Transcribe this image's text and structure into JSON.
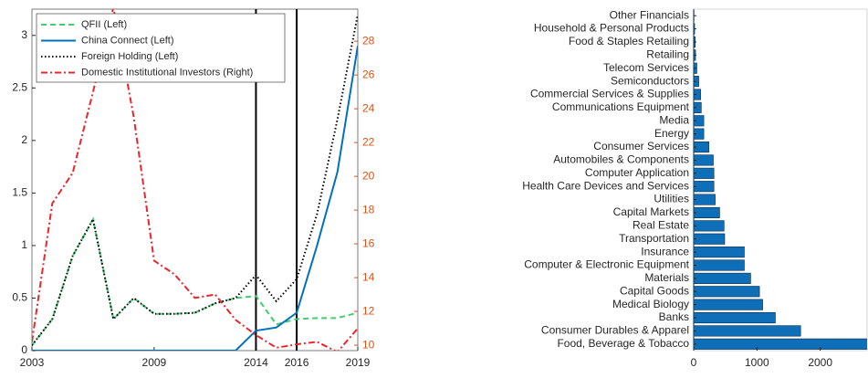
{
  "chart_data": [
    {
      "type": "line",
      "x": [
        2003,
        2004,
        2005,
        2006,
        2007,
        2008,
        2009,
        2010,
        2011,
        2012,
        2013,
        2014,
        2015,
        2016,
        2017,
        2018,
        2019
      ],
      "xlim": [
        2003,
        2019
      ],
      "xticks": [
        2003,
        2009,
        2014,
        2016,
        2019
      ],
      "ylim": [
        0,
        3.25
      ],
      "yticks": [
        0,
        0.5,
        1,
        1.5,
        2,
        2.5,
        3
      ],
      "y2lim": [
        9.68,
        29.9
      ],
      "y2ticks": [
        10,
        12,
        14,
        16,
        18,
        20,
        22,
        24,
        26,
        28
      ],
      "y2color": "#d95319",
      "vlines": [
        2014,
        2016
      ],
      "series": [
        {
          "name": "QFII (Left)",
          "color": "#3ecf6f",
          "dash": "6,4",
          "values": [
            0.05,
            0.3,
            0.9,
            1.25,
            0.3,
            0.5,
            0.35,
            0.35,
            0.36,
            0.45,
            0.5,
            0.52,
            0.25,
            0.3,
            0.31,
            0.31,
            0.36
          ]
        },
        {
          "name": "China Connect (Left)",
          "color": "#0072bd",
          "dash": "none",
          "values": [
            0,
            0,
            0,
            0,
            0,
            0,
            0,
            0,
            0,
            0,
            0,
            0.19,
            0.22,
            0.36,
            1.0,
            1.7,
            2.9
          ]
        },
        {
          "name": "Foreign Holding (Left)",
          "color": "#000000",
          "dash": "1.5,2.5",
          "values": [
            0.05,
            0.3,
            0.9,
            1.25,
            0.3,
            0.5,
            0.35,
            0.35,
            0.36,
            0.45,
            0.5,
            0.72,
            0.47,
            0.68,
            1.3,
            2.2,
            3.2
          ]
        },
        {
          "name": "Domestic Institutional Investors (Right)",
          "color": "#e8262b",
          "dash": "7,3,2,3",
          "axis": "y2",
          "values": [
            10.2,
            18.4,
            20.2,
            25,
            30,
            23.5,
            15,
            14.2,
            12.8,
            13,
            11.5,
            10.6,
            9.85,
            10.05,
            10.2,
            9.6,
            11
          ]
        }
      ]
    },
    {
      "type": "barh",
      "categories": [
        "Other Financials",
        "Household & Personal Products",
        "Food & Staples Retailing",
        "Retailing",
        "Telecom Services",
        "Semiconductors",
        "Commercial Services & Supplies",
        "Communications Equipment",
        "Media",
        "Energy",
        "Consumer Services",
        "Automobiles & Components",
        "Computer Application",
        "Health Care Devices and Services",
        "Utilities",
        "Capital Markets",
        "Real Estate",
        "Transportation",
        "Insurance",
        "Computer & Electronic Equipment",
        "Materials",
        "Capital Goods",
        "Medical Biology",
        "Banks",
        "Consumer Durables & Apparel",
        "Food, Beverage & Tobacco"
      ],
      "values": [
        5,
        15,
        25,
        30,
        50,
        80,
        110,
        120,
        160,
        160,
        240,
        310,
        320,
        320,
        340,
        410,
        480,
        490,
        800,
        800,
        900,
        1040,
        1090,
        1290,
        1690,
        2800
      ],
      "color": "#0e6eb8",
      "xlim": [
        0,
        2740
      ],
      "xticks": [
        0,
        {
          "value": 1000,
          "label": "1000"
        },
        {
          "value": 2000,
          "label": "2000"
        }
      ]
    }
  ]
}
